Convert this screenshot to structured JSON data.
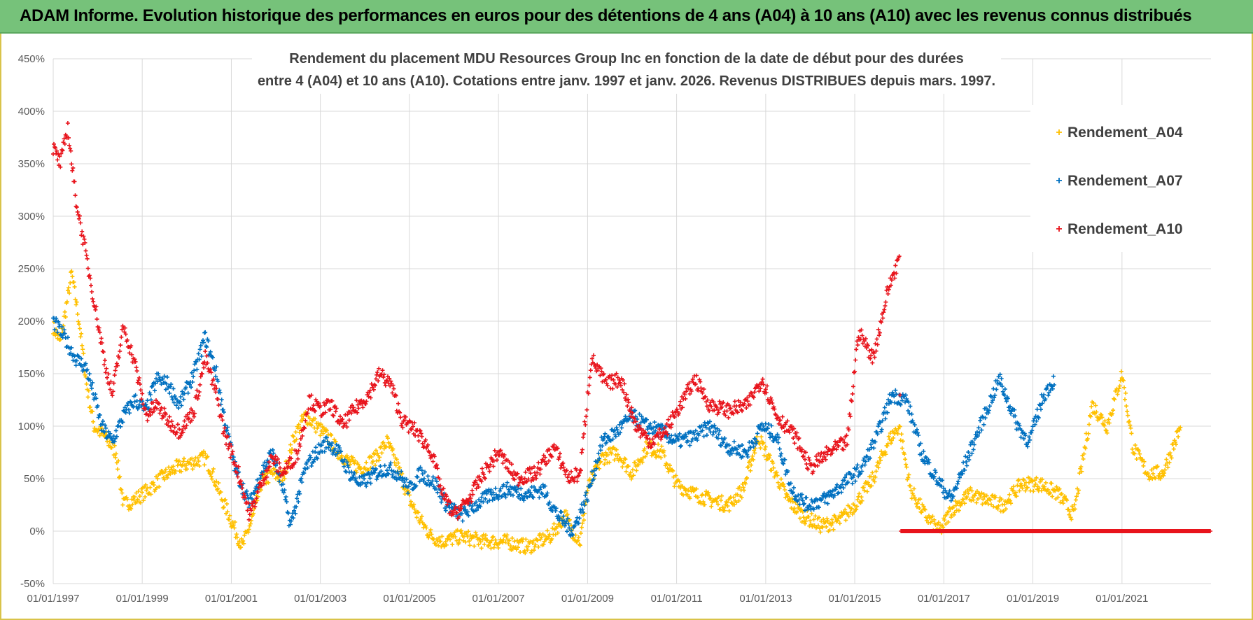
{
  "header": {
    "title": "ADAM Informe. Evolution historique des performances en euros pour des détentions de 4 ans (A04) à 10 ans (A10) avec les revenus connus distribués"
  },
  "colors": {
    "header_bg": "#76c27a",
    "A04": "#ffc000",
    "A07": "#0070c0",
    "A10": "#e8141c",
    "grid": "#d9d9d9"
  },
  "chart_data": {
    "type": "scatter",
    "title_lines": [
      "Rendement du placement MDU Resources Group Inc en fonction de la date de début pour des durées",
      "entre 4 (A04) et 10 ans (A10).  Cotations entre janv. 1997 et janv. 2026. Revenus DISTRIBUES depuis mars. 1997."
    ],
    "xlabel": "",
    "ylabel": "",
    "x_range": [
      "1997-01-01",
      "2023-01-01"
    ],
    "x_ticks": [
      "01/01/1997",
      "01/01/1999",
      "01/01/2001",
      "01/01/2003",
      "01/01/2005",
      "01/01/2007",
      "01/01/2009",
      "01/01/2011",
      "01/01/2013",
      "01/01/2015",
      "01/01/2017",
      "01/01/2019",
      "01/01/2021"
    ],
    "y_range": [
      -50,
      450
    ],
    "y_ticks": [
      "-50%",
      "0%",
      "50%",
      "100%",
      "150%",
      "200%",
      "250%",
      "300%",
      "350%",
      "400%",
      "450%"
    ],
    "y_tick_values": [
      -50,
      0,
      50,
      100,
      150,
      200,
      250,
      300,
      350,
      400,
      450
    ],
    "grid": true,
    "legend_position": "top-right",
    "marker": "+",
    "series": [
      {
        "name": "Rendement_A04",
        "color": "#ffc000",
        "points": [
          [
            "1997-01-01",
            195
          ],
          [
            "1997-03-01",
            180
          ],
          [
            "1997-06-01",
            245
          ],
          [
            "1997-08-01",
            200
          ],
          [
            "1997-10-01",
            140
          ],
          [
            "1997-12-01",
            100
          ],
          [
            "1998-03-01",
            90
          ],
          [
            "1998-06-01",
            75
          ],
          [
            "1998-08-01",
            25
          ],
          [
            "1998-11-01",
            30
          ],
          [
            "1999-03-01",
            40
          ],
          [
            "1999-06-01",
            50
          ],
          [
            "1999-10-01",
            60
          ],
          [
            "2000-02-01",
            65
          ],
          [
            "2000-06-01",
            70
          ],
          [
            "2000-08-01",
            55
          ],
          [
            "2000-10-01",
            35
          ],
          [
            "2001-01-01",
            10
          ],
          [
            "2001-04-01",
            -15
          ],
          [
            "2001-07-01",
            15
          ],
          [
            "2001-09-01",
            45
          ],
          [
            "2001-12-01",
            55
          ],
          [
            "2002-03-01",
            50
          ],
          [
            "2002-06-01",
            90
          ],
          [
            "2002-09-01",
            110
          ],
          [
            "2002-12-01",
            100
          ],
          [
            "2003-03-01",
            90
          ],
          [
            "2003-06-01",
            75
          ],
          [
            "2003-09-01",
            65
          ],
          [
            "2003-12-01",
            60
          ],
          [
            "2004-04-01",
            70
          ],
          [
            "2004-07-01",
            85
          ],
          [
            "2004-10-01",
            60
          ],
          [
            "2005-01-01",
            30
          ],
          [
            "2005-04-01",
            10
          ],
          [
            "2005-07-01",
            -5
          ],
          [
            "2005-10-01",
            -10
          ],
          [
            "2006-03-01",
            -5
          ],
          [
            "2006-09-01",
            -10
          ],
          [
            "2007-03-01",
            -10
          ],
          [
            "2007-09-01",
            -15
          ],
          [
            "2008-03-01",
            -5
          ],
          [
            "2008-07-01",
            15
          ],
          [
            "2008-09-01",
            0
          ],
          [
            "2008-11-01",
            -10
          ],
          [
            "2009-01-01",
            40
          ],
          [
            "2009-05-01",
            70
          ],
          [
            "2009-09-01",
            75
          ],
          [
            "2010-01-01",
            55
          ],
          [
            "2010-05-01",
            80
          ],
          [
            "2010-09-01",
            75
          ],
          [
            "2011-01-01",
            45
          ],
          [
            "2011-06-01",
            35
          ],
          [
            "2011-10-01",
            30
          ],
          [
            "2012-03-01",
            25
          ],
          [
            "2012-07-01",
            40
          ],
          [
            "2012-11-01",
            90
          ],
          [
            "2013-03-01",
            60
          ],
          [
            "2013-07-01",
            30
          ],
          [
            "2013-11-01",
            15
          ],
          [
            "2014-04-01",
            5
          ],
          [
            "2014-09-01",
            10
          ],
          [
            "2015-01-01",
            25
          ],
          [
            "2015-06-01",
            50
          ],
          [
            "2015-10-01",
            85
          ],
          [
            "2016-01-01",
            100
          ],
          [
            "2016-04-01",
            40
          ],
          [
            "2016-08-01",
            15
          ],
          [
            "2016-12-01",
            0
          ],
          [
            "2017-03-01",
            20
          ],
          [
            "2017-08-01",
            35
          ],
          [
            "2017-12-01",
            30
          ],
          [
            "2018-05-01",
            25
          ],
          [
            "2018-10-01",
            45
          ],
          [
            "2019-03-01",
            45
          ],
          [
            "2019-08-01",
            35
          ],
          [
            "2019-12-01",
            15
          ],
          [
            "2020-05-01",
            120
          ],
          [
            "2020-09-01",
            100
          ],
          [
            "2021-01-01",
            150
          ],
          [
            "2021-04-01",
            80
          ],
          [
            "2021-08-01",
            55
          ],
          [
            "2021-12-01",
            55
          ],
          [
            "2022-05-01",
            100
          ]
        ]
      },
      {
        "name": "Rendement_A07",
        "color": "#0070c0",
        "points": [
          [
            "1997-01-01",
            200
          ],
          [
            "1997-04-01",
            185
          ],
          [
            "1997-07-01",
            165
          ],
          [
            "1997-10-01",
            155
          ],
          [
            "1997-12-01",
            130
          ],
          [
            "1998-02-01",
            100
          ],
          [
            "1998-05-01",
            85
          ],
          [
            "1998-08-01",
            110
          ],
          [
            "1998-11-01",
            125
          ],
          [
            "1999-02-01",
            115
          ],
          [
            "1999-05-01",
            145
          ],
          [
            "1999-08-01",
            140
          ],
          [
            "1999-11-01",
            120
          ],
          [
            "2000-03-01",
            150
          ],
          [
            "2000-06-01",
            185
          ],
          [
            "2000-09-01",
            150
          ],
          [
            "2000-11-01",
            110
          ],
          [
            "2001-02-01",
            60
          ],
          [
            "2001-06-01",
            25
          ],
          [
            "2001-09-01",
            55
          ],
          [
            "2001-12-01",
            75
          ],
          [
            "2002-03-01",
            40
          ],
          [
            "2002-05-01",
            5
          ],
          [
            "2002-09-01",
            60
          ],
          [
            "2002-12-01",
            75
          ],
          [
            "2003-03-01",
            85
          ],
          [
            "2003-06-01",
            75
          ],
          [
            "2003-09-01",
            55
          ],
          [
            "2003-12-01",
            45
          ],
          [
            "2004-04-01",
            55
          ],
          [
            "2004-07-01",
            60
          ],
          [
            "2004-10-01",
            55
          ],
          [
            "2005-01-01",
            40
          ],
          [
            "2005-04-01",
            55
          ],
          [
            "2005-08-01",
            45
          ],
          [
            "2005-11-01",
            25
          ],
          [
            "2006-03-01",
            15
          ],
          [
            "2006-07-01",
            25
          ],
          [
            "2006-11-01",
            35
          ],
          [
            "2007-04-01",
            40
          ],
          [
            "2007-09-01",
            35
          ],
          [
            "2008-01-01",
            40
          ],
          [
            "2008-05-01",
            15
          ],
          [
            "2008-09-01",
            0
          ],
          [
            "2009-01-01",
            35
          ],
          [
            "2009-05-01",
            85
          ],
          [
            "2009-09-01",
            95
          ],
          [
            "2010-01-01",
            110
          ],
          [
            "2010-05-01",
            100
          ],
          [
            "2010-09-01",
            95
          ],
          [
            "2011-01-01",
            85
          ],
          [
            "2011-06-01",
            90
          ],
          [
            "2011-10-01",
            100
          ],
          [
            "2012-03-01",
            80
          ],
          [
            "2012-08-01",
            75
          ],
          [
            "2012-12-01",
            100
          ],
          [
            "2013-04-01",
            90
          ],
          [
            "2013-08-01",
            40
          ],
          [
            "2013-12-01",
            25
          ],
          [
            "2014-05-01",
            30
          ],
          [
            "2014-10-01",
            45
          ],
          [
            "2015-03-01",
            60
          ],
          [
            "2015-07-01",
            90
          ],
          [
            "2015-11-01",
            130
          ],
          [
            "2016-03-01",
            125
          ],
          [
            "2016-07-01",
            75
          ],
          [
            "2016-11-01",
            50
          ],
          [
            "2017-03-01",
            30
          ],
          [
            "2017-08-01",
            75
          ],
          [
            "2017-12-01",
            110
          ],
          [
            "2018-04-01",
            145
          ],
          [
            "2018-09-01",
            100
          ],
          [
            "2018-12-01",
            85
          ],
          [
            "2019-04-01",
            130
          ],
          [
            "2019-07-01",
            145
          ]
        ]
      },
      {
        "name": "Rendement_A10",
        "color": "#e8141c",
        "points": [
          [
            "1997-01-01",
            365
          ],
          [
            "1997-03-01",
            350
          ],
          [
            "1997-05-01",
            385
          ],
          [
            "1997-07-01",
            320
          ],
          [
            "1997-09-01",
            280
          ],
          [
            "1997-11-01",
            240
          ],
          [
            "1998-01-01",
            200
          ],
          [
            "1998-03-01",
            160
          ],
          [
            "1998-05-01",
            130
          ],
          [
            "1998-08-01",
            195
          ],
          [
            "1998-11-01",
            160
          ],
          [
            "1999-02-01",
            110
          ],
          [
            "1999-05-01",
            120
          ],
          [
            "1999-08-01",
            105
          ],
          [
            "1999-11-01",
            95
          ],
          [
            "2000-03-01",
            115
          ],
          [
            "2000-06-01",
            165
          ],
          [
            "2000-09-01",
            130
          ],
          [
            "2000-11-01",
            95
          ],
          [
            "2001-03-01",
            55
          ],
          [
            "2001-06-01",
            15
          ],
          [
            "2001-09-01",
            45
          ],
          [
            "2001-12-01",
            70
          ],
          [
            "2002-03-01",
            55
          ],
          [
            "2002-07-01",
            75
          ],
          [
            "2002-10-01",
            125
          ],
          [
            "2003-01-01",
            115
          ],
          [
            "2003-04-01",
            120
          ],
          [
            "2003-07-01",
            100
          ],
          [
            "2003-10-01",
            115
          ],
          [
            "2004-02-01",
            130
          ],
          [
            "2004-05-01",
            150
          ],
          [
            "2004-08-01",
            140
          ],
          [
            "2004-11-01",
            105
          ],
          [
            "2005-03-01",
            95
          ],
          [
            "2005-07-01",
            75
          ],
          [
            "2005-10-01",
            35
          ],
          [
            "2006-01-01",
            15
          ],
          [
            "2006-05-01",
            30
          ],
          [
            "2006-09-01",
            55
          ],
          [
            "2007-01-01",
            75
          ],
          [
            "2007-06-01",
            50
          ],
          [
            "2007-11-01",
            55
          ],
          [
            "2008-04-01",
            80
          ],
          [
            "2008-08-01",
            50
          ],
          [
            "2008-11-01",
            55
          ],
          [
            "2009-02-01",
            165
          ],
          [
            "2009-06-01",
            140
          ],
          [
            "2009-10-01",
            145
          ],
          [
            "2010-02-01",
            100
          ],
          [
            "2010-06-01",
            85
          ],
          [
            "2010-10-01",
            95
          ],
          [
            "2011-02-01",
            120
          ],
          [
            "2011-06-01",
            145
          ],
          [
            "2011-10-01",
            120
          ],
          [
            "2012-03-01",
            115
          ],
          [
            "2012-08-01",
            120
          ],
          [
            "2012-12-01",
            145
          ],
          [
            "2013-04-01",
            110
          ],
          [
            "2013-09-01",
            90
          ],
          [
            "2014-01-01",
            60
          ],
          [
            "2014-06-01",
            75
          ],
          [
            "2014-11-01",
            85
          ],
          [
            "2015-02-01",
            190
          ],
          [
            "2015-06-01",
            165
          ],
          [
            "2015-10-01",
            230
          ],
          [
            "2016-01-01",
            260
          ],
          [
            "2016-01-15",
            0
          ],
          [
            "2023-01-01",
            0
          ]
        ]
      }
    ]
  }
}
